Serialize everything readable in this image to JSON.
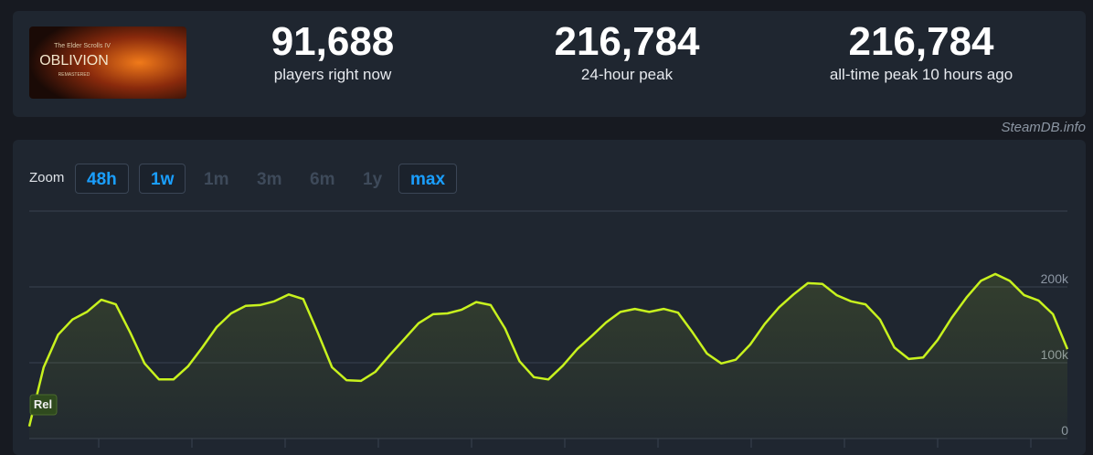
{
  "header": {
    "logo": {
      "series": "The Elder Scrolls IV",
      "title": "OBLIVION",
      "edition": "REMASTERED"
    },
    "stats": [
      {
        "value": "91,688",
        "label": "players right now"
      },
      {
        "value": "216,784",
        "label": "24-hour peak"
      },
      {
        "value": "216,784",
        "label": "all-time peak 10 hours ago"
      }
    ]
  },
  "source": "SteamDB.info",
  "zoom": {
    "label": "Zoom",
    "options": [
      {
        "label": "48h",
        "active": true
      },
      {
        "label": "1w",
        "active": true
      },
      {
        "label": "1m",
        "active": false
      },
      {
        "label": "3m",
        "active": false
      },
      {
        "label": "6m",
        "active": false
      },
      {
        "label": "1y",
        "active": false
      },
      {
        "label": "max",
        "active": true
      }
    ]
  },
  "chart_data": {
    "type": "line",
    "annotation": "Rel",
    "color": "#c8f21e",
    "values": [
      16000,
      94000,
      137000,
      157000,
      167000,
      183000,
      177000,
      140000,
      99000,
      78000,
      78000,
      95000,
      120000,
      147000,
      165000,
      175000,
      176000,
      181000,
      190000,
      184000,
      140000,
      94000,
      77000,
      76000,
      88000,
      110000,
      131000,
      152000,
      164000,
      165000,
      170000,
      180000,
      176000,
      145000,
      102000,
      81000,
      78000,
      96000,
      118000,
      135000,
      153000,
      167000,
      171000,
      167000,
      171000,
      166000,
      140000,
      112000,
      99000,
      104000,
      124000,
      151000,
      173000,
      190000,
      205000,
      204000,
      189000,
      181000,
      177000,
      157000,
      120000,
      105000,
      107000,
      130000,
      160000,
      186000,
      208000,
      217000,
      208000,
      189000,
      182000,
      164000,
      118000
    ],
    "ylim": [
      0,
      300000
    ],
    "yticks": [
      0,
      {
        "value": 100000,
        "label": "100k"
      },
      {
        "value": 200000,
        "label": "200k"
      }
    ],
    "grid": true
  }
}
